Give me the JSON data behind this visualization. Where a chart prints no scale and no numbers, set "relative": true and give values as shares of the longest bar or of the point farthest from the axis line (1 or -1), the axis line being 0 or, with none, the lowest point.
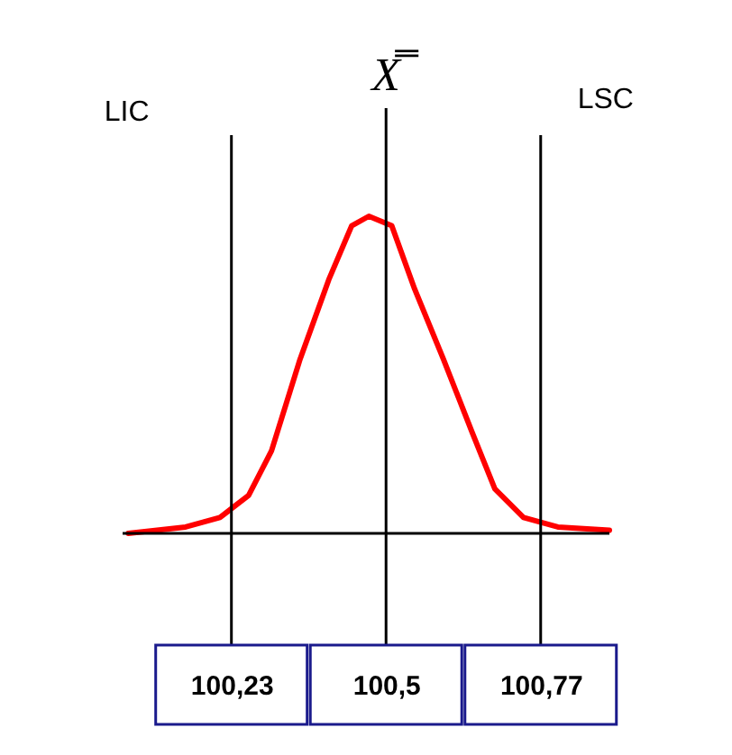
{
  "chart_data": {
    "type": "line",
    "relative": true,
    "tick_labels": "x",
    "xlim": [
      100.04,
      100.89
    ],
    "xticks": [
      {
        "value": 100.23,
        "label": "100,23"
      },
      {
        "value": 100.5,
        "label": "100,5"
      },
      {
        "value": 100.77,
        "label": "100,77"
      }
    ],
    "series": [
      {
        "color": "#ff0000",
        "x": [
          100.05,
          100.15,
          100.21,
          100.26,
          100.3,
          100.35,
          100.4,
          100.44,
          100.47,
          100.51,
          100.55,
          100.6,
          100.65,
          100.69,
          100.74,
          100.8,
          100.89
        ],
        "values": [
          0,
          0.02,
          0.05,
          0.12,
          0.26,
          0.55,
          0.8,
          0.97,
          1,
          0.97,
          0.77,
          0.55,
          0.32,
          0.14,
          0.05,
          0.02,
          0.01
        ]
      }
    ],
    "ref_lines": [
      {
        "axis": "x",
        "value": 100.23,
        "label": "LIC",
        "color": "#000000"
      },
      {
        "axis": "x",
        "value": 100.5,
        "label": "X̿",
        "color": "#000000"
      },
      {
        "axis": "x",
        "value": 100.77,
        "label": "LSC",
        "color": "#000000"
      }
    ]
  }
}
